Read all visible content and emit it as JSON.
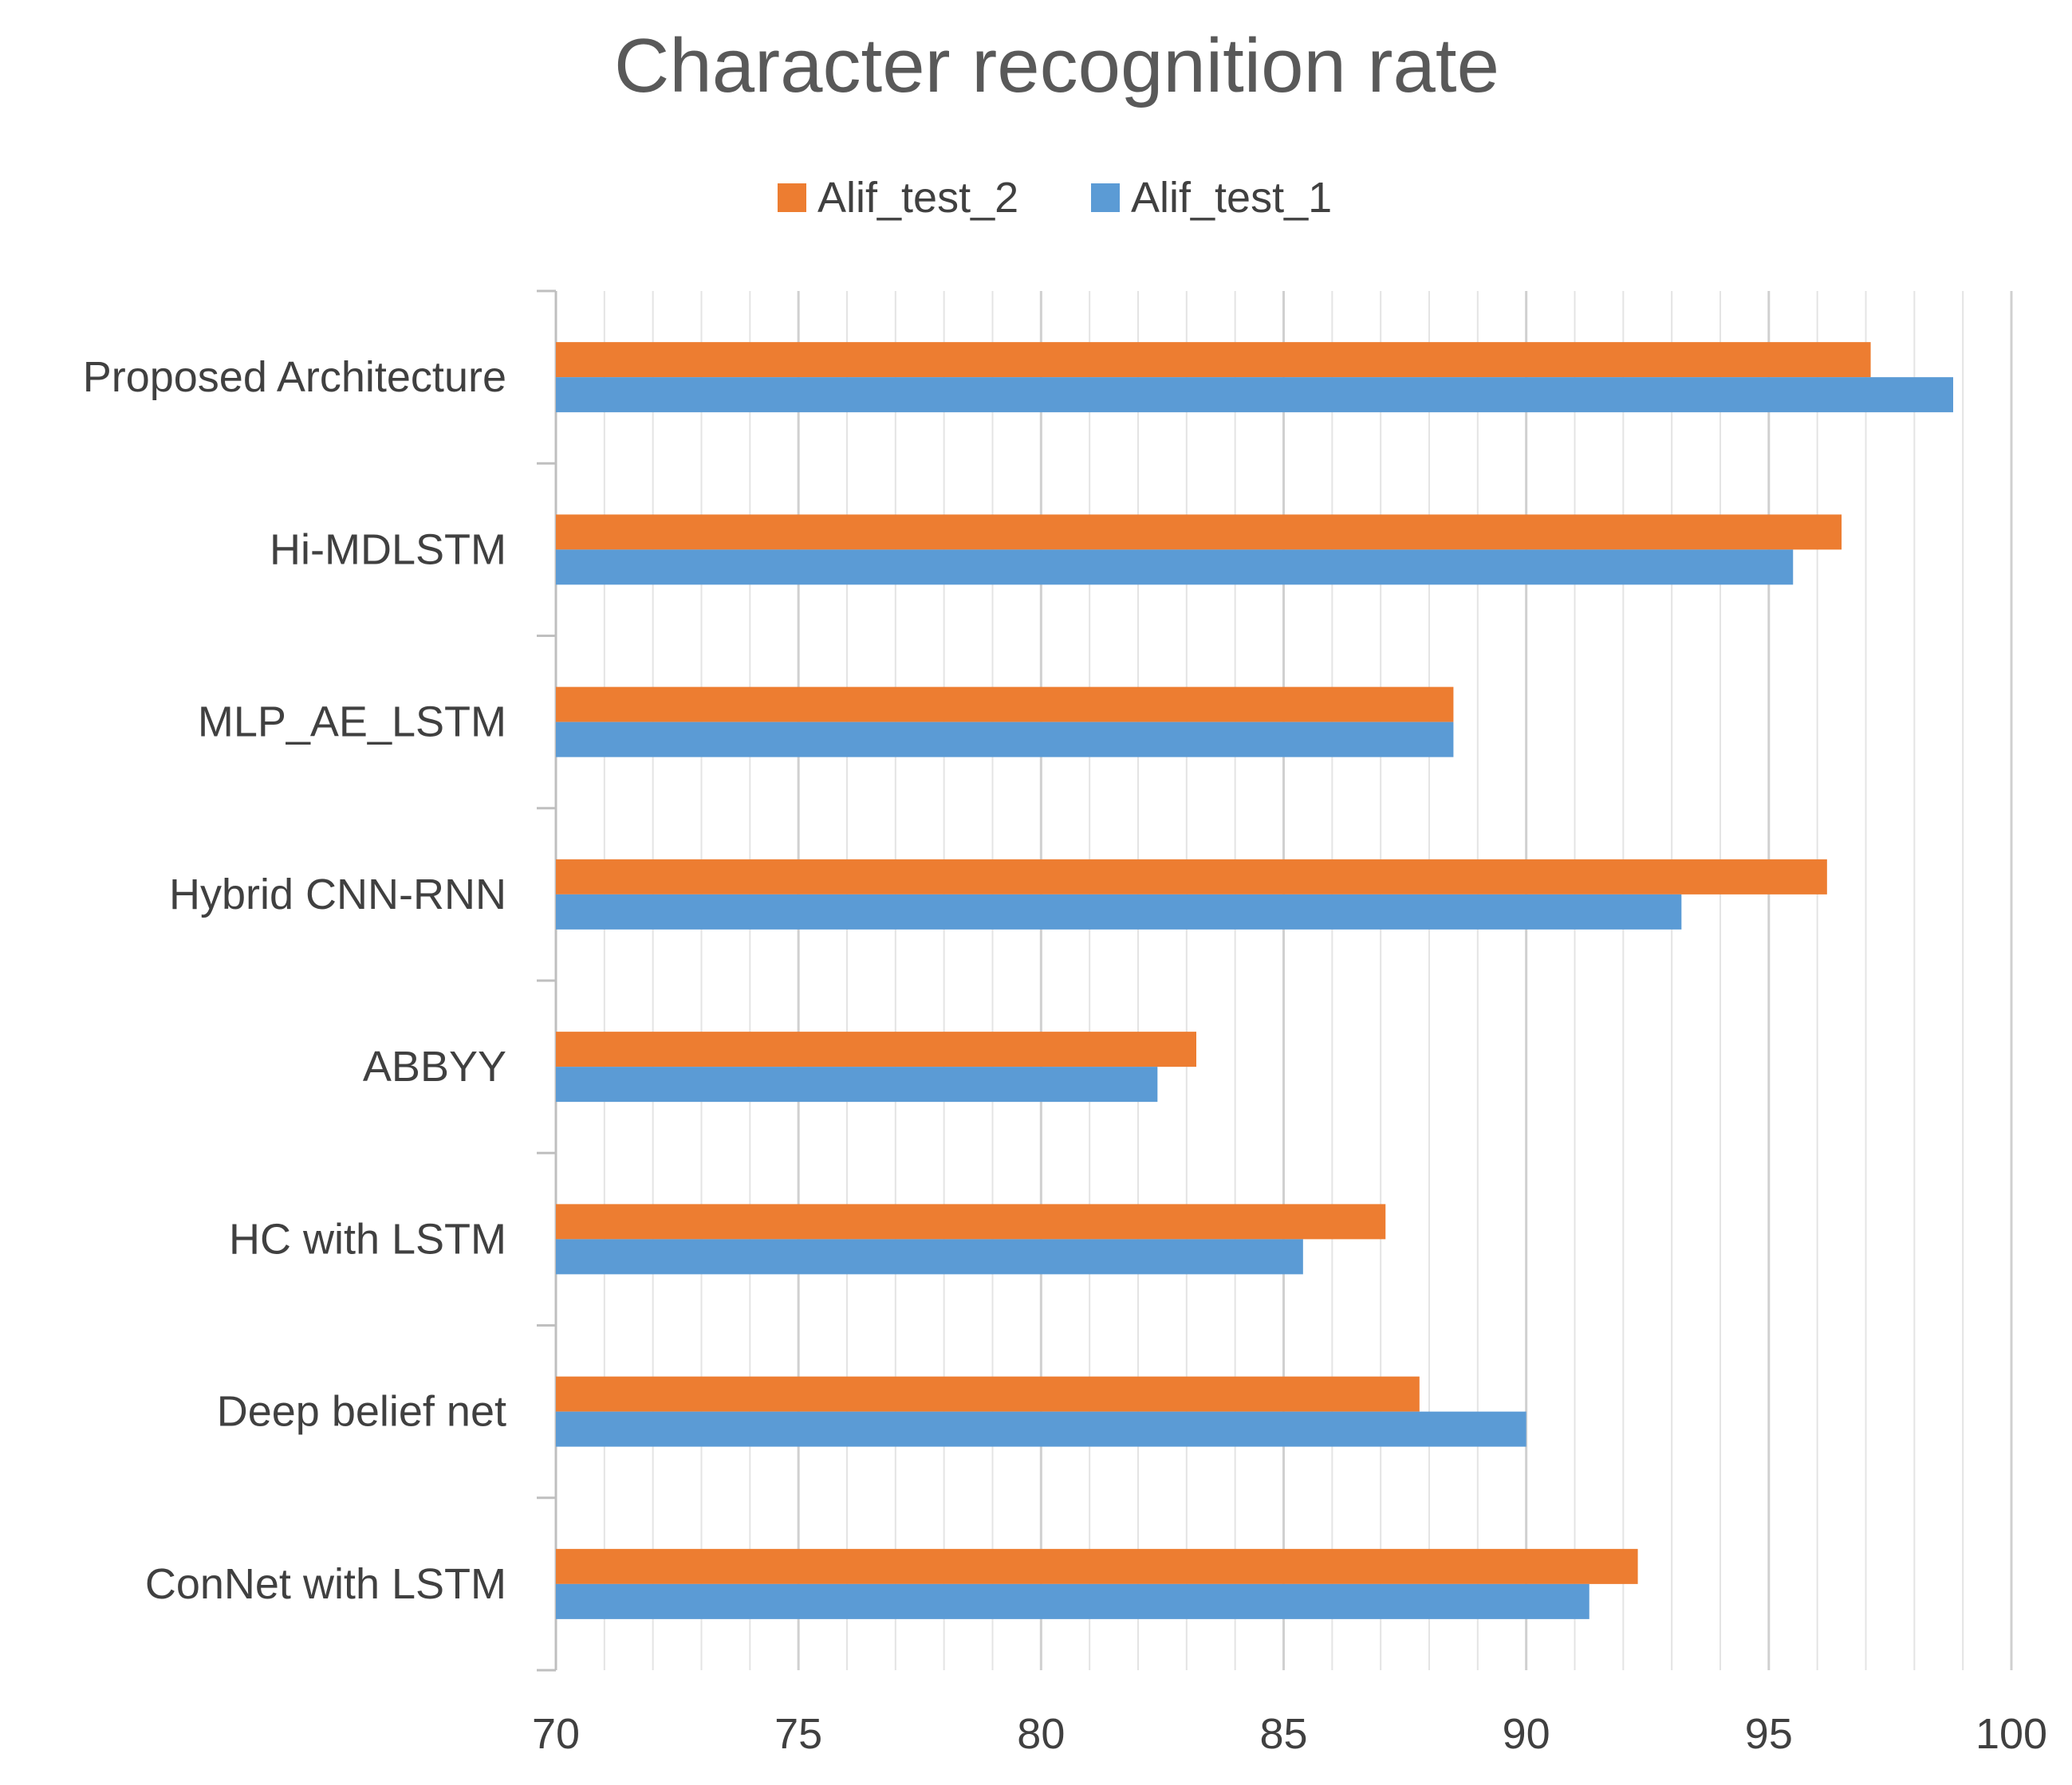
{
  "chart_data": {
    "type": "bar",
    "orientation": "horizontal",
    "title": "Character recognition rate",
    "xlabel": "",
    "ylabel": "",
    "xlim": [
      70,
      100
    ],
    "x_ticks": [
      70,
      75,
      80,
      85,
      90,
      95,
      100
    ],
    "minor_step": 1,
    "grid": true,
    "legend_position": "top-center",
    "categories": [
      "Proposed Architecture",
      "Hi-MDLSTM",
      "MLP_AE_LSTM",
      "Hybrid CNN-RNN",
      "ABBYY",
      "HC with LSTM",
      "Deep belief net",
      "ConNet with LSTM"
    ],
    "series": [
      {
        "name": "Alif_test_2",
        "color": "#ED7D31",
        "values": [
          97.1,
          96.5,
          88.5,
          96.2,
          83.2,
          87.1,
          87.8,
          92.3
        ]
      },
      {
        "name": "Alif_test_1",
        "color": "#5B9BD5",
        "values": [
          98.8,
          95.5,
          88.5,
          93.2,
          82.4,
          85.4,
          90.0,
          91.3
        ]
      }
    ]
  }
}
